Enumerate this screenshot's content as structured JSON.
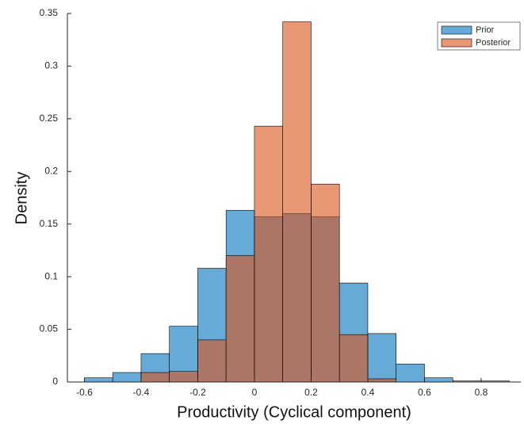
{
  "chart_data": {
    "type": "histogram",
    "xlabel": "Productivity (Cyclical component)",
    "ylabel": "Density",
    "bins": [
      -0.6,
      -0.5,
      -0.4,
      -0.3,
      -0.2,
      -0.1,
      0,
      0.1,
      0.2,
      0.3,
      0.4,
      0.5,
      0.6,
      0.7,
      0.8,
      0.9
    ],
    "series": [
      {
        "name": "Prior",
        "color": "#0072bd",
        "values": [
          0.004,
          0.009,
          0.027,
          0.053,
          0.108,
          0.163,
          0.157,
          0.16,
          0.157,
          0.094,
          0.046,
          0.017,
          0.004,
          0.001,
          0.001
        ]
      },
      {
        "name": "Posterior",
        "color": "#d95319",
        "values": [
          0,
          0,
          0.009,
          0.01,
          0.04,
          0.12,
          0.243,
          0.342,
          0.188,
          0.045,
          0.003,
          0,
          0,
          0,
          0
        ]
      }
    ],
    "xlim": [
      -0.66,
      0.94
    ],
    "ylim": [
      0,
      0.35
    ],
    "xticks": [
      -0.6,
      -0.4,
      -0.2,
      0,
      0.2,
      0.4,
      0.6,
      0.8
    ],
    "yticks": [
      0,
      0.05,
      0.1,
      0.15,
      0.2,
      0.25,
      0.3,
      0.35
    ],
    "legend": "northeast"
  }
}
